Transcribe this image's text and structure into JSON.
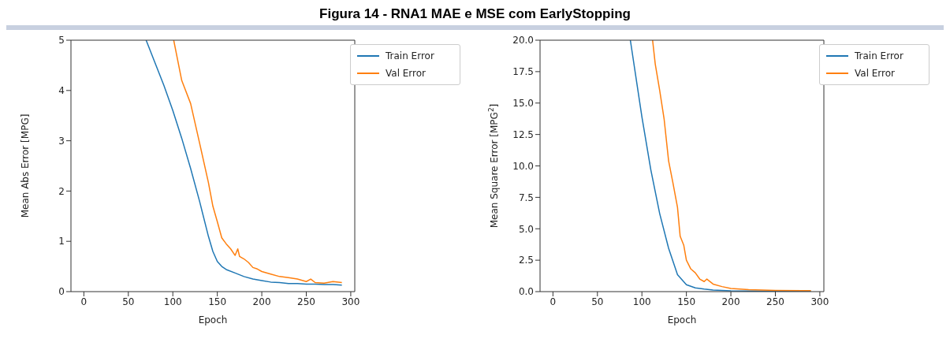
{
  "chart_data": [
    {
      "type": "line",
      "title": "Figura 14 - RNA1 MAE e MSE com EarlyStopping",
      "xlabel": "Epoch",
      "ylabel": "Mean Abs Error [MPG]",
      "xlim": [
        -14.5,
        304.5
      ],
      "ylim": [
        0,
        5
      ],
      "xticks": [
        0,
        50,
        100,
        150,
        200,
        250,
        300
      ],
      "yticks": [
        0,
        1,
        2,
        3,
        4,
        5
      ],
      "legend": "top right",
      "grid": false,
      "series": [
        {
          "name": "Train Error",
          "color": "#1f77b4",
          "x": [
            70,
            80,
            90,
            100,
            110,
            120,
            130,
            140,
            145,
            150,
            155,
            160,
            170,
            180,
            190,
            200,
            210,
            220,
            230,
            240,
            250,
            260,
            270,
            280,
            290
          ],
          "values": [
            5,
            4.55,
            4.1,
            3.6,
            3.05,
            2.45,
            1.8,
            1.1,
            0.8,
            0.6,
            0.5,
            0.44,
            0.37,
            0.3,
            0.25,
            0.22,
            0.19,
            0.18,
            0.16,
            0.16,
            0.15,
            0.15,
            0.14,
            0.14,
            0.13
          ]
        },
        {
          "name": "Val Error",
          "color": "#ff7f0e",
          "x": [
            101,
            110,
            120,
            130,
            140,
            145,
            150,
            155,
            160,
            165,
            170,
            173,
            175,
            180,
            185,
            190,
            195,
            200,
            210,
            220,
            230,
            240,
            250,
            255,
            260,
            270,
            280,
            290
          ],
          "values": [
            5,
            4.2,
            3.74,
            2.96,
            2.17,
            1.7,
            1.39,
            1.07,
            0.95,
            0.85,
            0.72,
            0.85,
            0.7,
            0.65,
            0.58,
            0.48,
            0.45,
            0.4,
            0.35,
            0.3,
            0.28,
            0.25,
            0.2,
            0.25,
            0.18,
            0.17,
            0.2,
            0.18
          ]
        }
      ]
    },
    {
      "type": "line",
      "xlabel": "Epoch",
      "ylabel": "Mean Square Error [MPG$^{2}$]",
      "xlim": [
        -14.5,
        304.5
      ],
      "ylim": [
        0,
        20
      ],
      "xticks": [
        0,
        50,
        100,
        150,
        200,
        250,
        300
      ],
      "yticks": [
        {
          "value": 0,
          "label": "0.0"
        },
        {
          "value": 2.5,
          "label": "2.5"
        },
        {
          "value": 5,
          "label": "5.0"
        },
        {
          "value": 7.5,
          "label": "7.5"
        },
        {
          "value": 10,
          "label": "10.0"
        },
        {
          "value": 12.5,
          "label": "12.5"
        },
        {
          "value": 15,
          "label": "15.0"
        },
        {
          "value": 17.5,
          "label": "17.5"
        },
        {
          "value": 20,
          "label": "20.0"
        }
      ],
      "legend": "top right",
      "grid": false,
      "series": [
        {
          "name": "Train Error",
          "color": "#1f77b4",
          "x": [
            87,
            100,
            110,
            120,
            130,
            140,
            150,
            160,
            170,
            180,
            200,
            250,
            290
          ],
          "values": [
            20,
            13.9,
            9.7,
            6.2,
            3.45,
            1.35,
            0.55,
            0.3,
            0.2,
            0.12,
            0.06,
            0.03,
            0.02
          ]
        },
        {
          "name": "Val Error",
          "color": "#ff7f0e",
          "x": [
            112,
            115,
            120,
            125,
            130,
            135,
            140,
            143,
            147,
            150,
            155,
            160,
            165,
            170,
            173,
            180,
            190,
            200,
            220,
            250,
            290
          ],
          "values": [
            20,
            18.1,
            16,
            13.7,
            10.4,
            8.6,
            6.7,
            4.4,
            3.7,
            2.5,
            1.8,
            1.5,
            1,
            0.8,
            1,
            0.6,
            0.4,
            0.25,
            0.15,
            0.1,
            0.08
          ]
        }
      ]
    }
  ]
}
